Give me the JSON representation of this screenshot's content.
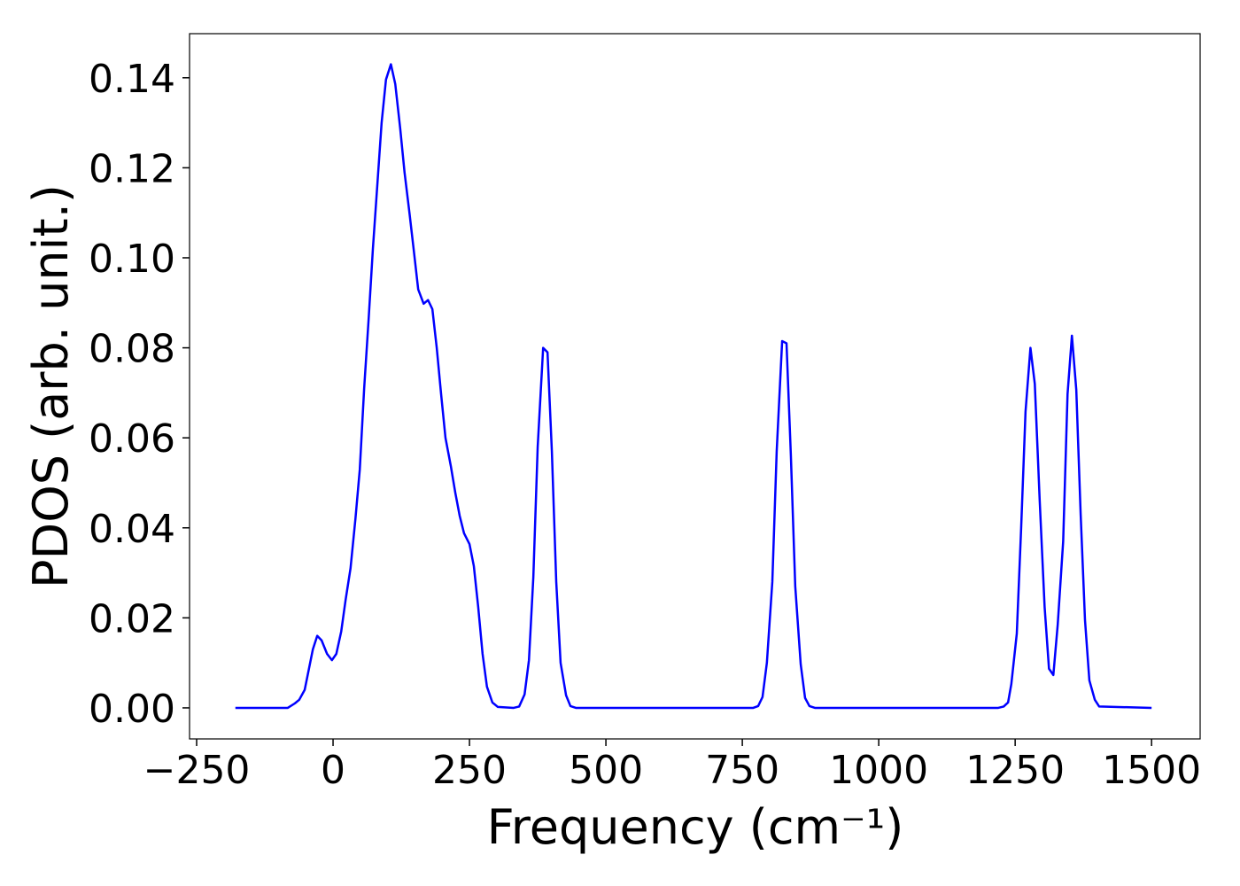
{
  "chart_data": {
    "type": "line",
    "xlabel": "Frequency (cm⁻¹)",
    "ylabel": "PDOS (arb. unit.)",
    "xlim": [
      -263,
      1589
    ],
    "ylim": [
      -0.0069,
      0.1498
    ],
    "xticks": [
      {
        "value": -250,
        "label": "−250"
      },
      0,
      250,
      500,
      750,
      1000,
      1250,
      1500
    ],
    "yticks": [
      {
        "value": 0,
        "label": "0.00"
      },
      {
        "value": 0.02,
        "label": "0.02"
      },
      {
        "value": 0.04,
        "label": "0.04"
      },
      {
        "value": 0.06,
        "label": "0.06"
      },
      {
        "value": 0.08,
        "label": "0.08"
      },
      {
        "value": 0.1,
        "label": "0.10"
      },
      {
        "value": 0.12,
        "label": "0.12"
      },
      {
        "value": 0.14,
        "label": "0.14"
      }
    ],
    "grid": false,
    "series": [
      {
        "color": "#0000ff",
        "x": [
          -179,
          -83,
          -70,
          -62,
          -52,
          -37,
          -29,
          -21,
          -11,
          -2,
          6,
          15,
          23,
          32,
          41,
          49,
          57,
          65,
          73,
          81,
          89,
          97,
          106,
          114,
          123,
          131,
          140,
          148,
          156,
          166,
          174,
          182,
          190,
          198,
          206,
          216,
          224,
          232,
          240,
          250,
          258,
          266,
          274,
          282,
          292,
          302,
          331,
          341,
          351,
          359,
          367,
          375,
          385,
          393,
          401,
          409,
          417,
          427,
          435,
          445,
          770,
          779,
          787,
          795,
          805,
          813,
          823,
          831,
          839,
          847,
          857,
          865,
          873,
          883,
          1219,
          1229,
          1237,
          1243,
          1253,
          1261,
          1269,
          1278,
          1286,
          1295,
          1304,
          1312,
          1320,
          1328,
          1338,
          1346,
          1354,
          1362,
          1370,
          1378,
          1386,
          1396,
          1404,
          1500
        ],
        "values": [
          0,
          0,
          0.001,
          0.0018,
          0.004,
          0.013,
          0.016,
          0.015,
          0.012,
          0.0106,
          0.012,
          0.017,
          0.024,
          0.031,
          0.042,
          0.053,
          0.071,
          0.086,
          0.102,
          0.116,
          0.13,
          0.1396,
          0.143,
          0.1386,
          0.1288,
          0.119,
          0.11,
          0.1016,
          0.093,
          0.0898,
          0.0906,
          0.0886,
          0.08,
          0.0697,
          0.06,
          0.0536,
          0.0478,
          0.0427,
          0.0388,
          0.0364,
          0.0315,
          0.0224,
          0.012,
          0.0047,
          0.0012,
          0.0002,
          0,
          0.0003,
          0.003,
          0.0106,
          0.029,
          0.058,
          0.08,
          0.079,
          0.057,
          0.028,
          0.01,
          0.0028,
          0.0004,
          0,
          0,
          0.0004,
          0.0024,
          0.01,
          0.028,
          0.057,
          0.0815,
          0.081,
          0.056,
          0.027,
          0.0097,
          0.0022,
          0.0004,
          0,
          0,
          0.0003,
          0.0012,
          0.0053,
          0.0165,
          0.04,
          0.0658,
          0.08,
          0.072,
          0.046,
          0.0224,
          0.0087,
          0.0073,
          0.0185,
          0.037,
          0.0697,
          0.0827,
          0.0707,
          0.0431,
          0.0195,
          0.0061,
          0.0018,
          0.0003,
          0
        ]
      }
    ]
  }
}
